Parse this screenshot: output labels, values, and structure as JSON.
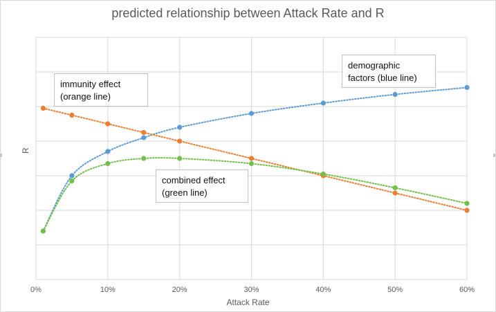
{
  "chart_data": {
    "type": "scatter",
    "title": "predicted relationship between Attack Rate and R",
    "xlabel": "Attack Rate",
    "ylabel": "R",
    "xlim": [
      0,
      0.6
    ],
    "ylim": [
      0,
      7
    ],
    "x_ticks": [
      "0%",
      "10%",
      "20%",
      "30%",
      "40%",
      "50%",
      "60%"
    ],
    "grid": true,
    "trendlines": "dotted",
    "series": [
      {
        "color": "#5b9bd5",
        "x": [
          0.01,
          0.05,
          0.1,
          0.15,
          0.2,
          0.3,
          0.4,
          0.5,
          0.6
        ],
        "y": [
          1.4,
          3.0,
          3.7,
          4.1,
          4.4,
          4.8,
          5.1,
          5.35,
          5.55
        ]
      },
      {
        "color": "#ed7d31",
        "x": [
          0.01,
          0.05,
          0.1,
          0.15,
          0.2,
          0.3,
          0.4,
          0.5,
          0.6
        ],
        "y": [
          4.95,
          4.75,
          4.5,
          4.25,
          4.0,
          3.5,
          3.0,
          2.5,
          2.0
        ]
      },
      {
        "color": "#70c04a",
        "x": [
          0.01,
          0.05,
          0.1,
          0.15,
          0.2,
          0.3,
          0.4,
          0.5,
          0.6
        ],
        "y": [
          1.4,
          2.85,
          3.35,
          3.5,
          3.5,
          3.35,
          3.05,
          2.65,
          2.2
        ]
      }
    ],
    "annotations": [
      {
        "text": "immunity effect\n(orange line)"
      },
      {
        "text": "demographic\nfactors (blue line)"
      },
      {
        "text": "combined effect\n(green line)"
      }
    ]
  }
}
